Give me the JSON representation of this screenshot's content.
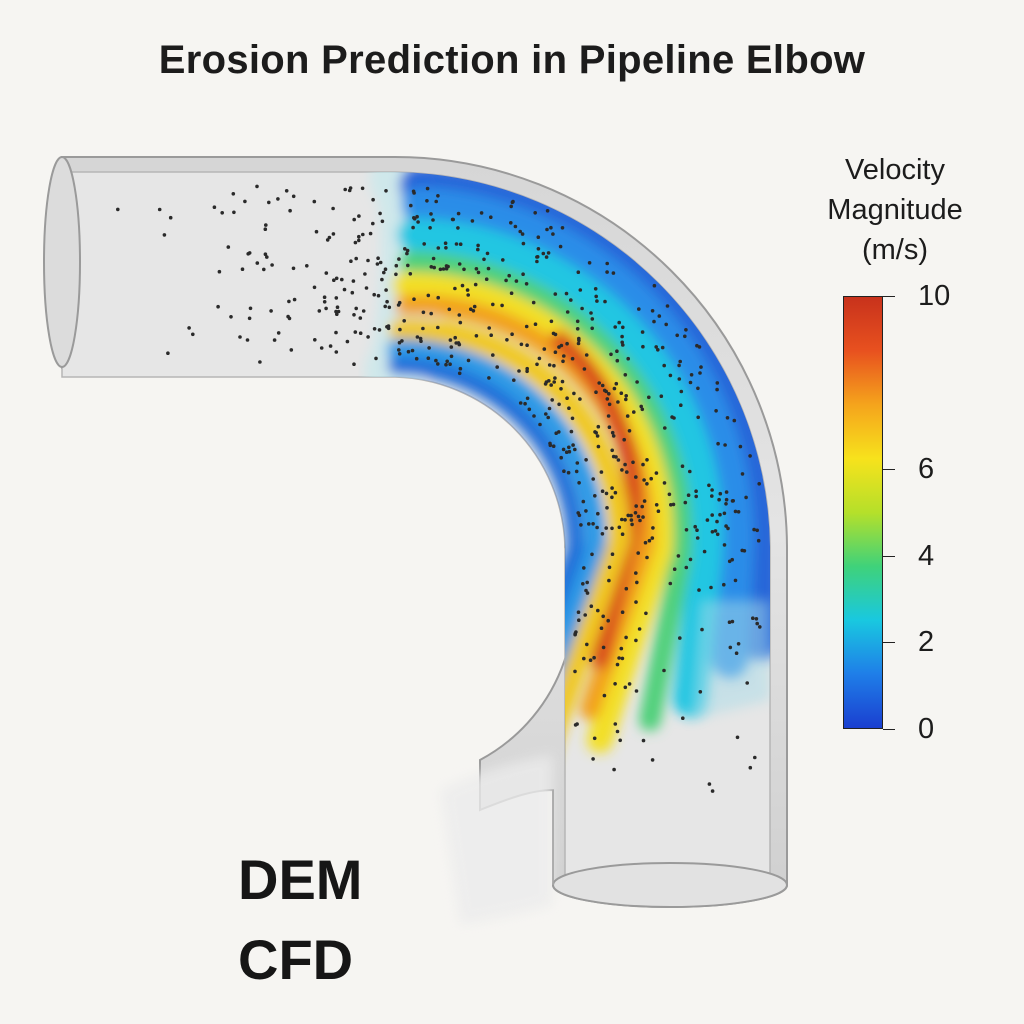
{
  "title": "Erosion Prediction in Pipeline Elbow",
  "legend": {
    "title_lines": [
      "Velocity",
      "Magnitude",
      "(m/s)"
    ],
    "ticks": [
      {
        "label": "10",
        "value": 10
      },
      {
        "label": "6",
        "value": 6
      },
      {
        "label": "4",
        "value": 4
      },
      {
        "label": "2",
        "value": 2
      },
      {
        "label": "0",
        "value": 0
      }
    ],
    "range": [
      0,
      10
    ],
    "colormap": [
      "#1a3fd0",
      "#1f7ee8",
      "#19c8e0",
      "#3fd27a",
      "#b5e02a",
      "#f7e21c",
      "#f5a41c",
      "#e8511f",
      "#c8321c"
    ]
  },
  "method_labels": [
    "DEM",
    "CFD"
  ],
  "colors": {
    "pipe_wall": "#d9d9d9",
    "pipe_outline": "#9a9a9a",
    "particle": "#2a2a2a",
    "background": "#f6f5f2"
  }
}
